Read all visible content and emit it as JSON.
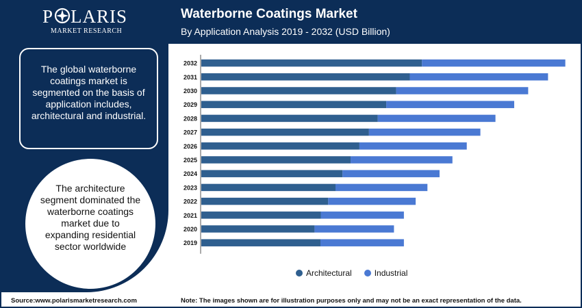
{
  "brand": {
    "name": "POLARIS",
    "sub": "MARKET RESEARCH"
  },
  "header": {
    "title": "Waterborne Coatings Market",
    "subtitle": "By Application Analysis 2019 - 2032 (USD Billion)"
  },
  "side": {
    "box_text": "The global waterborne coatings market is segmented on the basis of application includes, architectural and industrial.",
    "circle_text": "The architecture segment dominated the waterborne coatings market due to expanding residential sector worldwide"
  },
  "footer": {
    "source": "Source:www.polarismarketresearch.com",
    "note": "Note: The images shown are for illustration purposes only and may not be an exact representation of the data."
  },
  "colors": {
    "navy": "#0c2d57",
    "architectural": "#2f5f8f",
    "industrial": "#4a79d3"
  },
  "chart_data": {
    "type": "bar",
    "orientation": "horizontal",
    "stacked": true,
    "title": "Waterborne Coatings Market",
    "subtitle": "By Application Analysis 2019 - 2032 (USD Billion)",
    "categories": [
      "2032",
      "2031",
      "2030",
      "2029",
      "2028",
      "2027",
      "2026",
      "2025",
      "2024",
      "2023",
      "2022",
      "2021",
      "2020",
      "2019"
    ],
    "series": [
      {
        "name": "Architectural",
        "color": "#2f5f8f",
        "values": [
          60.0,
          56.7,
          53.0,
          50.3,
          48.0,
          45.6,
          43.0,
          40.6,
          38.4,
          36.5,
          34.5,
          32.5,
          30.8,
          32.4
        ]
      },
      {
        "name": "Industrial",
        "color": "#4a79d3",
        "values": [
          39.0,
          37.6,
          35.9,
          34.8,
          32.0,
          30.3,
          29.2,
          27.7,
          26.4,
          25.0,
          23.8,
          22.6,
          21.6,
          22.7
        ]
      }
    ],
    "xlim": [
      0,
      100
    ],
    "grid": false,
    "legend": "bottom"
  }
}
